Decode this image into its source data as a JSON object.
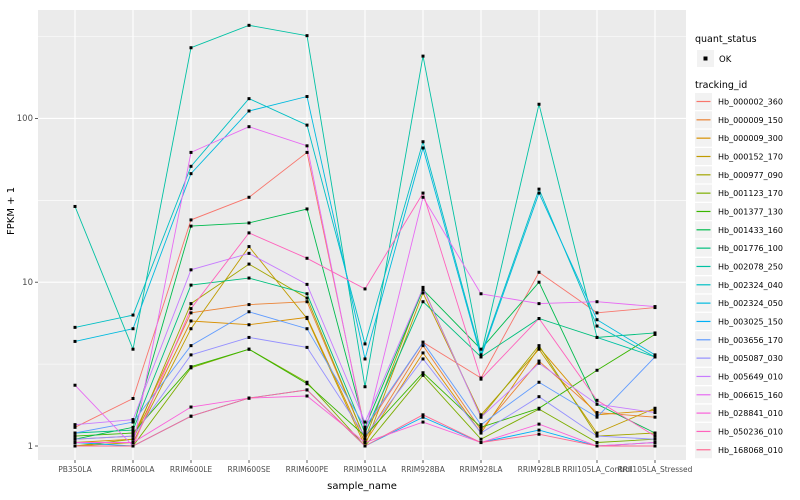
{
  "chart_data": {
    "type": "line",
    "scale_y": "log10",
    "xlabel": "sample_name",
    "ylabel": "FPKM + 1",
    "ytick_labels": [
      "1",
      "10",
      "100"
    ],
    "ytick_values": [
      1,
      10,
      100
    ],
    "ylim": [
      0.83,
      460
    ],
    "grid": "on",
    "point_color": "#000000",
    "panel_bg": "#EBEBEB",
    "categories": [
      "PB350LA",
      "RRIM600LA",
      "RRIM600LE",
      "RRIM600SE",
      "RRIM600PE",
      "RRIM901LA",
      "RRIM928BA",
      "RRIM928LA",
      "RRIM928LB",
      "RRII105LA_Control",
      "RRII105LA_Stressed"
    ],
    "series": [
      {
        "name": "Hb_000002_360",
        "color": "#F8766D",
        "values": [
          1.3,
          1.95,
          24,
          33,
          62,
          1.25,
          4.3,
          2.6,
          11.5,
          6.5,
          7.0
        ]
      },
      {
        "name": "Hb_000009_150",
        "color": "#EB8335",
        "values": [
          1.1,
          1.15,
          6.5,
          7.3,
          7.6,
          1.1,
          4.1,
          1.25,
          3.3,
          1.6,
          1.5
        ]
      },
      {
        "name": "Hb_000009_300",
        "color": "#D89000",
        "values": [
          1.05,
          1.1,
          5.8,
          5.5,
          6.1,
          1.05,
          3.7,
          1.2,
          4.0,
          1.55,
          1.65
        ]
      },
      {
        "name": "Hb_000152_170",
        "color": "#C09B00",
        "values": [
          1.0,
          1.05,
          5.2,
          16.5,
          6.0,
          1.0,
          8.6,
          1.55,
          3.9,
          1.2,
          1.7
        ]
      },
      {
        "name": "Hb_000977_090",
        "color": "#A3A500",
        "values": [
          1.0,
          1.1,
          7.4,
          12.9,
          8.0,
          1.1,
          9.3,
          1.5,
          4.1,
          1.15,
          1.2
        ]
      },
      {
        "name": "Hb_001123_170",
        "color": "#7CAE00",
        "values": [
          1.0,
          1.0,
          3.0,
          3.9,
          2.45,
          1.0,
          2.7,
          1.1,
          1.68,
          1.05,
          1.1
        ]
      },
      {
        "name": "Hb_001377_130",
        "color": "#39B600",
        "values": [
          1.15,
          1.2,
          3.05,
          3.9,
          2.4,
          1.15,
          2.8,
          1.3,
          1.7,
          2.9,
          4.8
        ]
      },
      {
        "name": "Hb_001433_160",
        "color": "#00BB4E",
        "values": [
          1.1,
          1.3,
          22,
          23,
          28,
          1.3,
          9.0,
          3.9,
          10.0,
          1.8,
          1.2
        ]
      },
      {
        "name": "Hb_001776_100",
        "color": "#00BF7D",
        "values": [
          1.2,
          1.25,
          9.6,
          10.6,
          8.5,
          1.2,
          7.6,
          3.5,
          6.0,
          4.6,
          4.9
        ]
      },
      {
        "name": "Hb_002078_250",
        "color": "#00C1A3",
        "values": [
          29,
          3.9,
          270,
          370,
          320,
          2.3,
          240,
          3.6,
          122,
          4.6,
          3.5
        ]
      },
      {
        "name": "Hb_002324_040",
        "color": "#00BFC4",
        "values": [
          5.3,
          6.3,
          51,
          132,
          91,
          4.2,
          72,
          3.6,
          37,
          5.4,
          3.5
        ]
      },
      {
        "name": "Hb_002324_050",
        "color": "#00BADE",
        "values": [
          4.35,
          5.2,
          46,
          111,
          136,
          3.4,
          66,
          3.5,
          35,
          5.9,
          3.6
        ]
      },
      {
        "name": "Hb_003025_150",
        "color": "#00B0F6",
        "values": [
          1.05,
          1.0,
          1.52,
          1.96,
          2.2,
          1.0,
          1.5,
          1.05,
          1.25,
          1.0,
          1.05
        ]
      },
      {
        "name": "Hb_003656_170",
        "color": "#619CFF",
        "values": [
          1.2,
          1.4,
          4.1,
          6.6,
          5.2,
          1.3,
          4.3,
          1.35,
          2.45,
          1.5,
          3.5
        ]
      },
      {
        "name": "Hb_005087_030",
        "color": "#9590FF",
        "values": [
          1.1,
          1.15,
          3.6,
          4.6,
          4.0,
          1.15,
          3.4,
          1.2,
          2.0,
          1.15,
          1.1
        ]
      },
      {
        "name": "Hb_005649_010",
        "color": "#C77CFF",
        "values": [
          1.35,
          1.45,
          11.9,
          15,
          9.7,
          1.4,
          9.2,
          1.5,
          3.2,
          1.8,
          1.6
        ]
      },
      {
        "name": "Hb_006615_160",
        "color": "#E76BF3",
        "values": [
          2.35,
          1.0,
          62,
          89,
          68,
          1.2,
          33,
          8.5,
          7.4,
          7.6,
          7.1
        ]
      },
      {
        "name": "Hb_028841_010",
        "color": "#FA62DB",
        "values": [
          1.05,
          1.05,
          1.73,
          1.96,
          2.02,
          1.05,
          1.4,
          1.05,
          1.36,
          1.0,
          1.05
        ]
      },
      {
        "name": "Hb_050236_010",
        "color": "#FF62BC",
        "values": [
          1.0,
          1.0,
          6.9,
          20,
          14,
          9.1,
          35,
          2.56,
          6.0,
          1.9,
          1.15
        ]
      },
      {
        "name": "Hb_168068_010",
        "color": "#FF6B94",
        "values": [
          1.0,
          1.0,
          1.52,
          1.96,
          2.2,
          1.0,
          1.55,
          1.05,
          1.18,
          1.0,
          1.0
        ]
      }
    ],
    "legend": {
      "position": "right",
      "quant_title": "quant_status",
      "quant_items": [
        {
          "label": "OK",
          "marker": "black-square-point"
        }
      ],
      "tracking_title": "tracking_id"
    }
  }
}
